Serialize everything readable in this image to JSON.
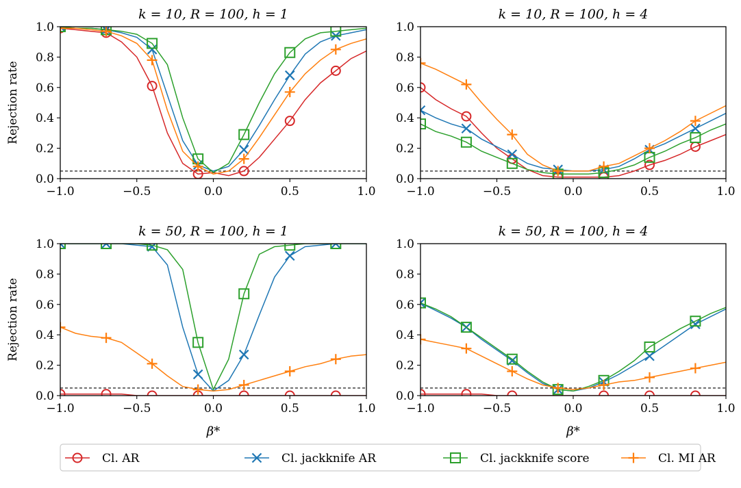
{
  "colors": {
    "cl_ar": "#d62728",
    "cl_jackknife_ar": "#1f77b4",
    "cl_jackknife_score": "#2ca02c",
    "cl_mi_ar": "#ff7f0e",
    "reference": "#000000"
  },
  "ylabel": "Rejection rate",
  "xlabel": "β*",
  "legend": [
    {
      "key": "cl_ar",
      "label": "Cl. AR",
      "marker": "circle"
    },
    {
      "key": "cl_jackknife_ar",
      "label": "Cl. jackknife AR",
      "marker": "x"
    },
    {
      "key": "cl_jackknife_score",
      "label": "Cl. jackknife score",
      "marker": "square"
    },
    {
      "key": "cl_mi_ar",
      "label": "Cl. MI AR",
      "marker": "plus"
    }
  ],
  "chart_data": [
    {
      "type": "line",
      "title": "k = 10, R = 100, h = 1",
      "xlim": [
        -1,
        1
      ],
      "ylim": [
        0,
        1
      ],
      "xticks": [
        "−1.0",
        "−0.5",
        "0.0",
        "0.5",
        "1.0"
      ],
      "yticks": [
        "0.0",
        "0.2",
        "0.4",
        "0.6",
        "0.8",
        "1.0"
      ],
      "reference_line": 0.05,
      "x": [
        -1.0,
        -0.9,
        -0.8,
        -0.7,
        -0.6,
        -0.5,
        -0.4,
        -0.3,
        -0.2,
        -0.1,
        0.0,
        0.1,
        0.2,
        0.3,
        0.4,
        0.5,
        0.6,
        0.7,
        0.8,
        0.9,
        1.0
      ],
      "series": [
        {
          "key": "cl_ar",
          "name": "Cl. AR",
          "values": [
            0.99,
            0.98,
            0.97,
            0.96,
            0.9,
            0.8,
            0.61,
            0.3,
            0.1,
            0.03,
            0.04,
            0.02,
            0.05,
            0.14,
            0.26,
            0.38,
            0.52,
            0.63,
            0.71,
            0.79,
            0.84
          ]
        },
        {
          "key": "cl_jackknife_ar",
          "name": "Cl. jackknife AR",
          "values": [
            1.0,
            0.99,
            0.99,
            0.98,
            0.96,
            0.93,
            0.85,
            0.55,
            0.25,
            0.09,
            0.05,
            0.08,
            0.19,
            0.35,
            0.52,
            0.68,
            0.82,
            0.9,
            0.94,
            0.96,
            0.98
          ]
        },
        {
          "key": "cl_jackknife_score",
          "name": "Cl. jackknife score",
          "values": [
            1.0,
            0.99,
            0.99,
            0.98,
            0.97,
            0.95,
            0.89,
            0.75,
            0.4,
            0.13,
            0.04,
            0.1,
            0.29,
            0.5,
            0.69,
            0.83,
            0.92,
            0.96,
            0.97,
            0.98,
            0.99
          ]
        },
        {
          "key": "cl_mi_ar",
          "name": "Cl. MI AR",
          "values": [
            0.99,
            0.99,
            0.98,
            0.97,
            0.94,
            0.89,
            0.78,
            0.45,
            0.18,
            0.08,
            0.03,
            0.05,
            0.13,
            0.27,
            0.42,
            0.57,
            0.69,
            0.78,
            0.85,
            0.89,
            0.92
          ]
        }
      ],
      "markers_at": [
        -1.0,
        -0.7,
        -0.4,
        -0.1,
        0.2,
        0.5,
        0.8
      ]
    },
    {
      "type": "line",
      "title": "k = 10, R = 100, h = 4",
      "xlim": [
        -1,
        1
      ],
      "ylim": [
        0,
        1
      ],
      "xticks": [
        "−1.0",
        "−0.5",
        "0.0",
        "0.5",
        "1.0"
      ],
      "yticks": [
        "0.0",
        "0.2",
        "0.4",
        "0.6",
        "0.8",
        "1.0"
      ],
      "reference_line": 0.05,
      "x": [
        -1.0,
        -0.9,
        -0.8,
        -0.7,
        -0.6,
        -0.5,
        -0.4,
        -0.3,
        -0.2,
        -0.1,
        0.0,
        0.1,
        0.2,
        0.3,
        0.4,
        0.5,
        0.6,
        0.7,
        0.8,
        0.9,
        1.0
      ],
      "series": [
        {
          "key": "cl_ar",
          "name": "Cl. AR",
          "values": [
            0.6,
            0.52,
            0.46,
            0.41,
            0.3,
            0.2,
            0.13,
            0.06,
            0.02,
            0.01,
            0.01,
            0.01,
            0.01,
            0.02,
            0.05,
            0.09,
            0.12,
            0.16,
            0.21,
            0.25,
            0.29
          ]
        },
        {
          "key": "cl_jackknife_ar",
          "name": "Cl. jackknife AR",
          "values": [
            0.45,
            0.4,
            0.36,
            0.33,
            0.26,
            0.21,
            0.16,
            0.1,
            0.07,
            0.06,
            0.05,
            0.05,
            0.06,
            0.08,
            0.13,
            0.19,
            0.23,
            0.28,
            0.33,
            0.38,
            0.43
          ]
        },
        {
          "key": "cl_jackknife_score",
          "name": "Cl. jackknife score",
          "values": [
            0.36,
            0.31,
            0.28,
            0.24,
            0.18,
            0.14,
            0.1,
            0.06,
            0.04,
            0.03,
            0.03,
            0.03,
            0.04,
            0.06,
            0.09,
            0.14,
            0.18,
            0.23,
            0.27,
            0.32,
            0.36
          ]
        },
        {
          "key": "cl_mi_ar",
          "name": "Cl. MI AR",
          "values": [
            0.76,
            0.72,
            0.67,
            0.62,
            0.5,
            0.39,
            0.29,
            0.16,
            0.09,
            0.05,
            0.05,
            0.05,
            0.08,
            0.1,
            0.15,
            0.2,
            0.25,
            0.31,
            0.38,
            0.43,
            0.48
          ]
        }
      ],
      "markers_at": [
        -1.0,
        -0.7,
        -0.4,
        -0.1,
        0.2,
        0.5,
        0.8
      ]
    },
    {
      "type": "line",
      "title": "k = 50, R = 100, h = 1",
      "xlim": [
        -1,
        1
      ],
      "ylim": [
        0,
        1
      ],
      "xticks": [
        "−1.0",
        "−0.5",
        "0.0",
        "0.5",
        "1.0"
      ],
      "yticks": [
        "0.0",
        "0.2",
        "0.4",
        "0.6",
        "0.8",
        "1.0"
      ],
      "reference_line": 0.05,
      "x": [
        -1.0,
        -0.9,
        -0.8,
        -0.7,
        -0.6,
        -0.5,
        -0.4,
        -0.3,
        -0.2,
        -0.1,
        0.0,
        0.1,
        0.2,
        0.3,
        0.4,
        0.5,
        0.6,
        0.7,
        0.8,
        0.9,
        1.0
      ],
      "series": [
        {
          "key": "cl_ar",
          "name": "Cl. AR",
          "values": [
            0.01,
            0.01,
            0.01,
            0.01,
            0.01,
            0.0,
            0.0,
            0.0,
            0.0,
            0.0,
            0.0,
            0.0,
            0.0,
            0.0,
            0.0,
            0.0,
            0.0,
            0.0,
            0.0,
            0.0,
            0.0
          ]
        },
        {
          "key": "cl_jackknife_ar",
          "name": "Cl. jackknife AR",
          "values": [
            1.0,
            1.0,
            1.0,
            1.0,
            1.0,
            0.99,
            0.98,
            0.86,
            0.45,
            0.14,
            0.03,
            0.1,
            0.27,
            0.53,
            0.78,
            0.92,
            0.98,
            0.99,
            1.0,
            1.0,
            1.0
          ]
        },
        {
          "key": "cl_jackknife_score",
          "name": "Cl. jackknife score",
          "values": [
            1.0,
            1.0,
            1.0,
            1.0,
            1.0,
            1.0,
            0.99,
            0.96,
            0.83,
            0.35,
            0.04,
            0.24,
            0.67,
            0.93,
            0.98,
            0.99,
            1.0,
            1.0,
            1.0,
            1.0,
            1.0
          ]
        },
        {
          "key": "cl_mi_ar",
          "name": "Cl. MI AR",
          "values": [
            0.45,
            0.41,
            0.39,
            0.38,
            0.35,
            0.28,
            0.21,
            0.13,
            0.06,
            0.04,
            0.03,
            0.04,
            0.07,
            0.1,
            0.13,
            0.16,
            0.19,
            0.21,
            0.24,
            0.26,
            0.27
          ]
        }
      ],
      "markers_at": [
        -1.0,
        -0.7,
        -0.4,
        -0.1,
        0.2,
        0.5,
        0.8
      ]
    },
    {
      "type": "line",
      "title": "k = 50, R = 100, h = 4",
      "xlim": [
        -1,
        1
      ],
      "ylim": [
        0,
        1
      ],
      "xticks": [
        "−1.0",
        "−0.5",
        "0.0",
        "0.5",
        "1.0"
      ],
      "yticks": [
        "0.0",
        "0.2",
        "0.4",
        "0.6",
        "0.8",
        "1.0"
      ],
      "reference_line": 0.05,
      "x": [
        -1.0,
        -0.9,
        -0.8,
        -0.7,
        -0.6,
        -0.5,
        -0.4,
        -0.3,
        -0.2,
        -0.1,
        0.0,
        0.1,
        0.2,
        0.3,
        0.4,
        0.5,
        0.6,
        0.7,
        0.8,
        0.9,
        1.0
      ],
      "series": [
        {
          "key": "cl_ar",
          "name": "Cl. AR",
          "values": [
            0.01,
            0.01,
            0.01,
            0.01,
            0.01,
            0.0,
            0.0,
            0.0,
            0.0,
            0.0,
            0.0,
            0.0,
            0.0,
            0.0,
            0.0,
            0.0,
            0.0,
            0.0,
            0.0,
            0.0,
            0.0
          ]
        },
        {
          "key": "cl_jackknife_ar",
          "name": "Cl. jackknife AR",
          "values": [
            0.61,
            0.56,
            0.51,
            0.45,
            0.37,
            0.3,
            0.23,
            0.15,
            0.08,
            0.04,
            0.03,
            0.05,
            0.09,
            0.14,
            0.2,
            0.26,
            0.33,
            0.4,
            0.47,
            0.52,
            0.57
          ]
        },
        {
          "key": "cl_jackknife_score",
          "name": "Cl. jackknife score",
          "values": [
            0.61,
            0.57,
            0.52,
            0.45,
            0.38,
            0.31,
            0.24,
            0.16,
            0.09,
            0.04,
            0.03,
            0.06,
            0.1,
            0.16,
            0.23,
            0.32,
            0.38,
            0.44,
            0.49,
            0.54,
            0.58
          ]
        },
        {
          "key": "cl_mi_ar",
          "name": "Cl. MI AR",
          "values": [
            0.37,
            0.35,
            0.33,
            0.31,
            0.26,
            0.21,
            0.16,
            0.11,
            0.07,
            0.05,
            0.04,
            0.05,
            0.07,
            0.09,
            0.1,
            0.12,
            0.14,
            0.16,
            0.18,
            0.2,
            0.22
          ]
        }
      ],
      "markers_at": [
        -1.0,
        -0.7,
        -0.4,
        -0.1,
        0.2,
        0.5,
        0.8
      ]
    }
  ]
}
